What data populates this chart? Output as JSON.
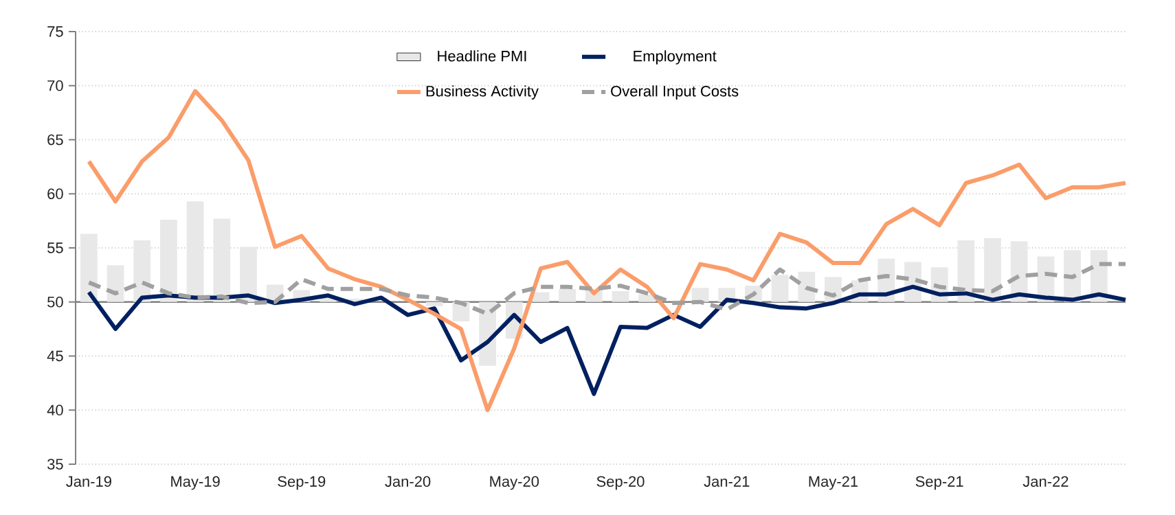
{
  "chart_data": {
    "type": "line",
    "categories": [
      "Jan-19",
      null,
      null,
      null,
      "May-19",
      null,
      null,
      null,
      "Sep-19",
      null,
      null,
      null,
      "Jan-20",
      null,
      null,
      null,
      "May-20",
      null,
      null,
      null,
      "Sep-20",
      null,
      null,
      null,
      "Jan-21",
      null,
      null,
      null,
      "May-21",
      null,
      null,
      null,
      "Sep-21",
      null,
      null,
      null,
      "Jan-22",
      null,
      null,
      null
    ],
    "series": [
      {
        "name": "Headline PMI",
        "type": "bar",
        "color": "#e8e8e8",
        "base": [
          50,
          50,
          50,
          50,
          50,
          50,
          50,
          50,
          50,
          50,
          50,
          null,
          null,
          50,
          50,
          50,
          50,
          50,
          50,
          50,
          50,
          50,
          null,
          50,
          50,
          50,
          50,
          50,
          50,
          50,
          50,
          50,
          50,
          50,
          50,
          50,
          50,
          50,
          50,
          null
        ],
        "values": [
          6.3,
          3.4,
          5.7,
          7.6,
          9.3,
          7.7,
          5.1,
          1.6,
          1.1,
          0.5,
          0.3,
          null,
          null,
          -0.4,
          -1.8,
          -5.9,
          -3.4,
          0.9,
          1.2,
          1.2,
          1.0,
          0.7,
          null,
          1.3,
          1.3,
          1.5,
          2.5,
          2.8,
          2.3,
          2.0,
          4.0,
          3.7,
          3.2,
          5.7,
          5.9,
          5.6,
          4.2,
          4.8,
          4.8,
          null
        ]
      },
      {
        "name": "Employment",
        "color": "#002060",
        "values": [
          50.9,
          47.5,
          50.4,
          50.6,
          50.4,
          50.4,
          50.6,
          49.9,
          50.2,
          50.6,
          49.8,
          50.4,
          48.8,
          49.4,
          44.6,
          46.3,
          48.8,
          46.3,
          47.6,
          41.5,
          47.7,
          47.6,
          48.8,
          47.7,
          50.2,
          49.9,
          49.5,
          49.4,
          49.9,
          50.7,
          50.7,
          51.4,
          50.7,
          50.8,
          50.2,
          50.7,
          50.4,
          50.2,
          50.7,
          50.2
        ]
      },
      {
        "name": "Business Activity",
        "color": "#fa9d6a",
        "values": [
          63.0,
          59.3,
          63.0,
          65.2,
          69.5,
          66.8,
          63.1,
          55.1,
          56.1,
          53.1,
          52.1,
          51.4,
          50.2,
          48.9,
          47.5,
          40.0,
          45.7,
          53.1,
          53.7,
          50.8,
          53.0,
          51.4,
          48.5,
          53.5,
          53.0,
          52.0,
          56.3,
          55.5,
          53.6,
          53.6,
          57.2,
          58.6,
          57.1,
          61.0,
          61.7,
          62.7,
          59.6,
          60.6,
          60.6,
          61.0
        ]
      },
      {
        "name": "Overall Input Costs",
        "color": "#a0a0a0",
        "line_style": "dashed",
        "values": [
          51.8,
          50.8,
          51.8,
          50.8,
          50.4,
          50.5,
          49.9,
          50.0,
          52.1,
          51.2,
          51.2,
          51.2,
          50.6,
          50.4,
          49.9,
          48.9,
          50.8,
          51.4,
          51.4,
          51.2,
          51.5,
          50.8,
          49.9,
          50.0,
          49.3,
          50.7,
          53.0,
          51.3,
          50.6,
          52.0,
          52.4,
          52.1,
          51.4,
          51.1,
          51.0,
          52.4,
          52.6,
          52.3,
          53.5,
          53.5
        ]
      }
    ],
    "ylim": [
      35,
      75
    ],
    "yticks": [
      35,
      40,
      45,
      50,
      55,
      60,
      65,
      70,
      75
    ],
    "ref_lines": [
      {
        "axis": "y",
        "value": 50,
        "color": "#808080"
      }
    ],
    "grid": "y",
    "legend": "top",
    "marker": "none"
  }
}
